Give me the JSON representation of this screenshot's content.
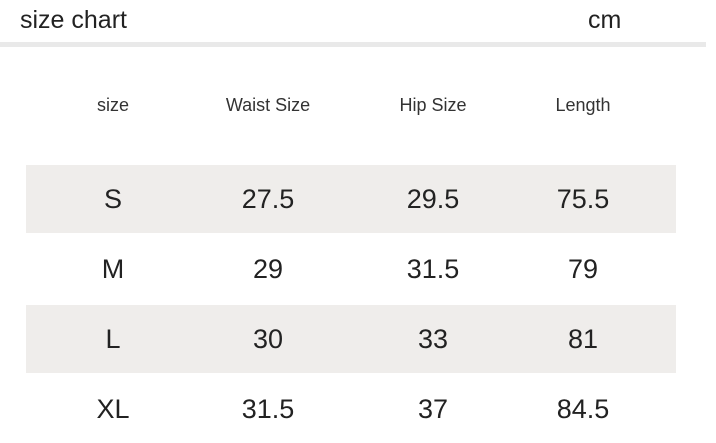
{
  "header": {
    "title": "size chart",
    "unit": "cm"
  },
  "table": {
    "columns": [
      "size",
      "Waist Size",
      "Hip Size",
      "Length"
    ],
    "rows": [
      [
        "S",
        "27.5",
        "29.5",
        "75.5"
      ],
      [
        "M",
        "29",
        "31.5",
        "79"
      ],
      [
        "L",
        "30",
        "33",
        "81"
      ],
      [
        "XL",
        "31.5",
        "37",
        "84.5"
      ]
    ],
    "shade_color": "#efedeb"
  }
}
